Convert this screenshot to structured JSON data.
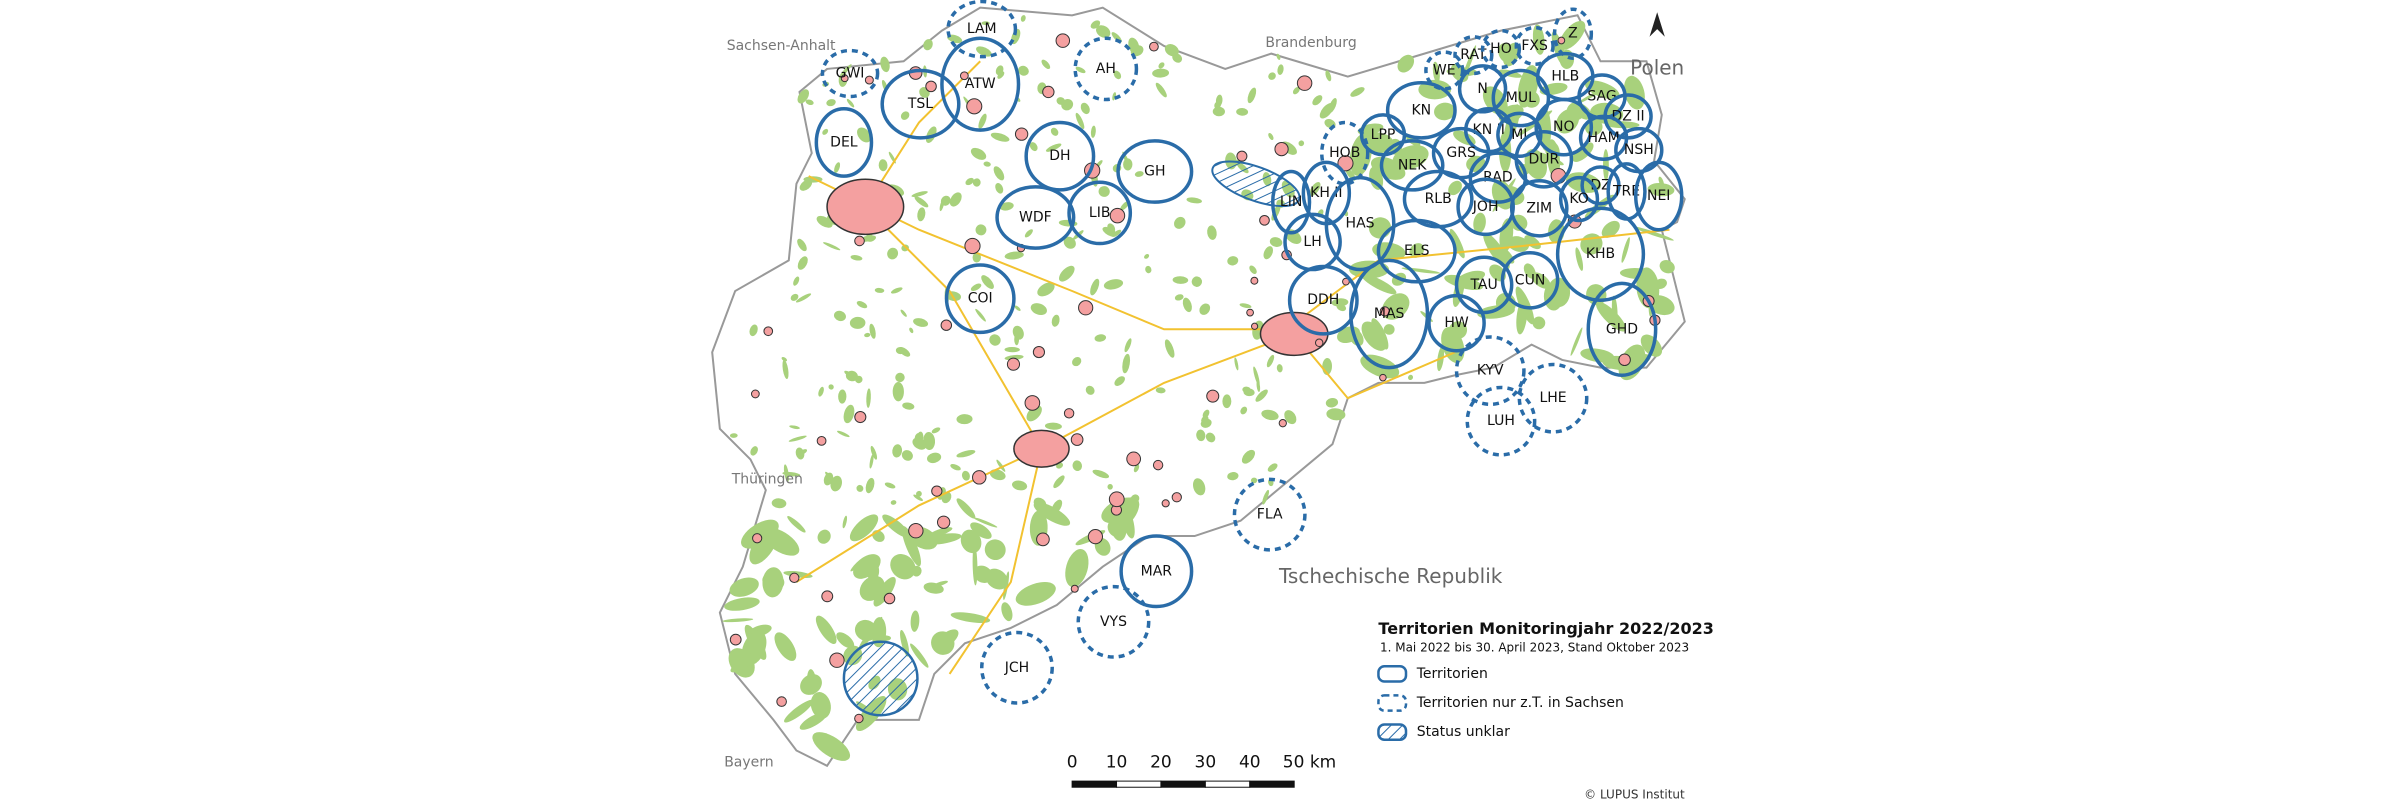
{
  "map": {
    "neighbors": [
      "Sachsen-Anhalt",
      "Brandenburg",
      "Polen",
      "Thüringen",
      "Tschechische Republik",
      "Bayern"
    ],
    "territories": [
      "ATW",
      "TSL",
      "DEL",
      "DH",
      "WDF",
      "LIB",
      "GH",
      "COI",
      "LIN",
      "KH II",
      "LH",
      "HAS",
      "DDH",
      "MAS",
      "ELS",
      "HW",
      "TAU",
      "KN",
      "N",
      "KN II",
      "MI",
      "MUL",
      "HLB",
      "NO",
      "SAG",
      "DZ II",
      "HAM",
      "NSH",
      "LPP",
      "NEK",
      "GRS",
      "DUR",
      "RAD",
      "RLB",
      "JOH",
      "ZIM",
      "DZ",
      "KO",
      "TRE",
      "NEI",
      "KHB",
      "CUN",
      "GHD",
      "MAR"
    ],
    "territories_partial": [
      "LAM",
      "GWI",
      "AH",
      "WE",
      "RAT",
      "HO",
      "FXS",
      "Z",
      "HOB",
      "KYV",
      "LUH",
      "LHE",
      "FLA",
      "VYS",
      "JCH"
    ],
    "legend": {
      "title": "Territorien Monitoringjahr 2022/2023",
      "subtitle": "1. Mai 2022 bis 30. April 2023, Stand Oktober 2023",
      "items": [
        "Territorien",
        "Territorien nur z.T. in Sachsen",
        "Status unklar"
      ]
    },
    "scale_bar": [
      0,
      10,
      20,
      30,
      40,
      "50 km"
    ],
    "credit": "© LUPUS Institut"
  }
}
